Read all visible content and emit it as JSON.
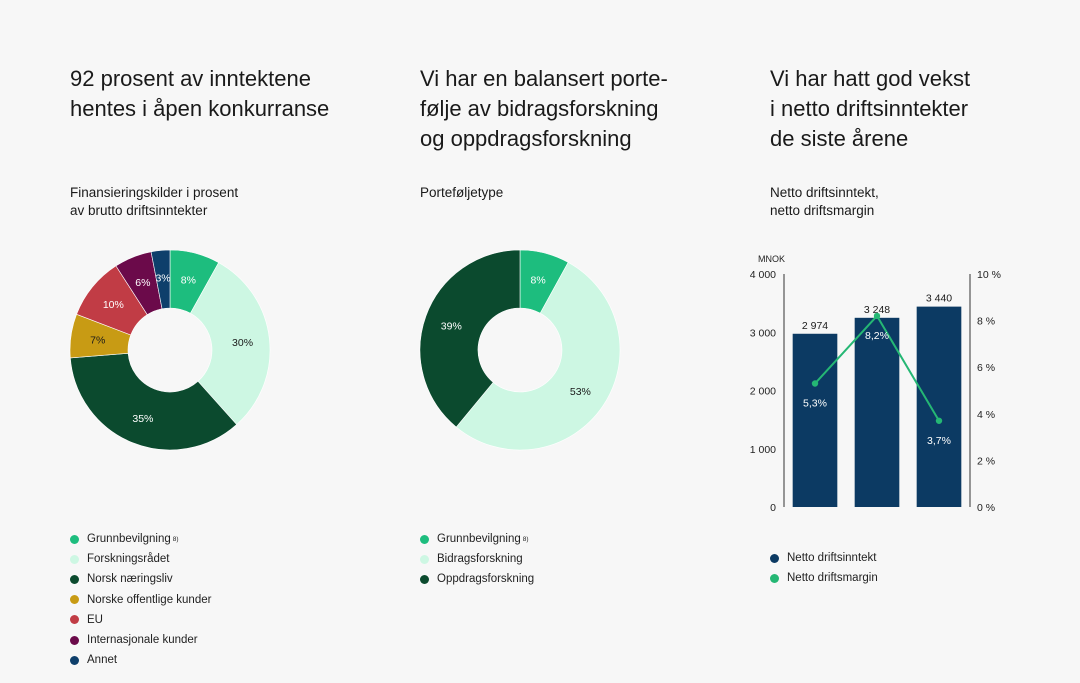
{
  "panels": [
    {
      "headline": "92 prosent av inntektene\nhentes i åpen konkurranse",
      "subtitle": "Finansieringskilder i prosent\nav brutto driftsinntekter"
    },
    {
      "headline": "Vi har en balansert porte-\nfølje av bidragsforskning\nog oppdragsforskning",
      "subtitle": "Porteføljetype"
    },
    {
      "headline": "Vi har hatt god vekst\ni netto driftsinntekter\nde siste årene",
      "subtitle": "Netto driftsinntekt,\nnetto driftsmargin"
    }
  ],
  "chart_data": [
    {
      "type": "pie",
      "variant": "donut",
      "title": "Finansieringskilder i prosent av brutto driftsinntekter",
      "slices": [
        {
          "label": "Grunnbevilgning",
          "note": "8)",
          "value": 8,
          "value_label": "8%",
          "color": "#1dbd7e"
        },
        {
          "label": "Forskningsrådet",
          "value": 30,
          "value_label": "30%",
          "color": "#cdf7e3"
        },
        {
          "label": "Norsk næringsliv",
          "value": 35,
          "value_label": "35%",
          "color": "#0b4a2e"
        },
        {
          "label": "Norske offentlige kunder",
          "value": 7,
          "value_label": "7%",
          "color": "#c89b14"
        },
        {
          "label": "EU",
          "value": 10,
          "value_label": "10%",
          "color": "#c13c45"
        },
        {
          "label": "Internasjonale kunder",
          "value": 6,
          "value_label": "6%",
          "color": "#6b0a4a"
        },
        {
          "label": "Annet",
          "value": 3,
          "value_label": "3%",
          "color": "#0e3f6b"
        }
      ],
      "legend_position": "bottom-left"
    },
    {
      "type": "pie",
      "variant": "donut",
      "title": "Porteføljetype",
      "slices": [
        {
          "label": "Grunnbevilgning",
          "note": "8)",
          "value": 8,
          "value_label": "8%",
          "color": "#1dbd7e"
        },
        {
          "label": "Bidragsforskning",
          "value": 53,
          "value_label": "53%",
          "color": "#cdf7e3"
        },
        {
          "label": "Oppdragsforskning",
          "value": 39,
          "value_label": "39%",
          "color": "#0b4a2e"
        }
      ],
      "legend_position": "bottom-left"
    },
    {
      "type": "bar",
      "combo": "bar+line",
      "title": "Netto driftsinntekt, netto driftsmargin",
      "ylabel": "MNOK",
      "ylim": [
        0,
        4000
      ],
      "yticks": [
        {
          "value": 0,
          "label": "0"
        },
        {
          "value": 1000,
          "label": "1 000"
        },
        {
          "value": 2000,
          "label": "2 000"
        },
        {
          "value": 3000,
          "label": "3 000"
        },
        {
          "value": 4000,
          "label": "4 000"
        }
      ],
      "y2lim": [
        0,
        10
      ],
      "y2ticks": [
        {
          "value": 0,
          "label": "0 %"
        },
        {
          "value": 2,
          "label": "2 %"
        },
        {
          "value": 4,
          "label": "4 %"
        },
        {
          "value": 6,
          "label": "6 %"
        },
        {
          "value": 8,
          "label": "8 %"
        },
        {
          "value": 10,
          "label": "10 %"
        }
      ],
      "series": [
        {
          "name": "Netto driftsinntekt",
          "kind": "bar",
          "axis": "left",
          "color": "#0c3a63",
          "values": [
            2974,
            3248,
            3440
          ],
          "labels": [
            "2 974",
            "3 248",
            "3 440"
          ]
        },
        {
          "name": "Netto driftsmargin",
          "kind": "line",
          "axis": "right",
          "color": "#25b774",
          "values": [
            5.3,
            8.2,
            3.7
          ],
          "labels": [
            "5,3%",
            "8,2%",
            "3,7%"
          ]
        }
      ],
      "grid": false,
      "legend_position": "bottom-left"
    }
  ]
}
